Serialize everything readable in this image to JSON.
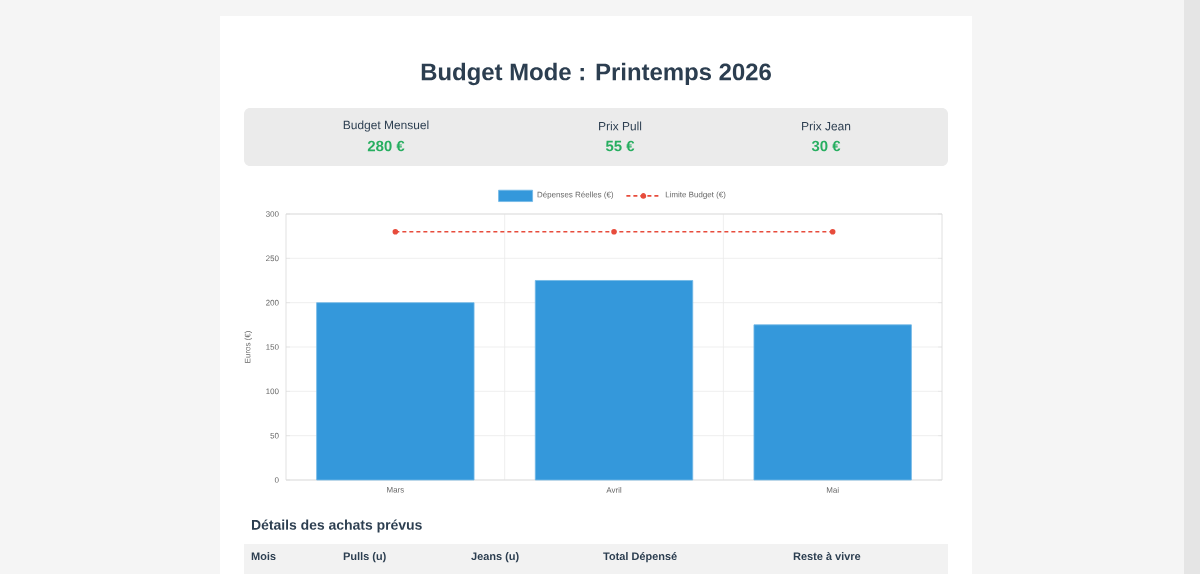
{
  "chart_data": {
    "type": "bar",
    "title": "Budget Mode : Printemps 2026",
    "categories": [
      "Mars",
      "Avril",
      "Mai"
    ],
    "series": [
      {
        "name": "Dépenses Réelles (€)",
        "color": "#3498db",
        "values": [
          200,
          225,
          175
        ]
      },
      {
        "name": "Limite Budget (€)",
        "type": "line",
        "color": "#e74c3c",
        "line_style": "dashed",
        "marker": "circle",
        "values": [
          280,
          280,
          280
        ]
      }
    ],
    "ylabel": "Euros (€)",
    "ylim": [
      0,
      300
    ],
    "yticks": [
      0,
      50,
      100,
      150,
      200,
      250,
      300
    ],
    "grid": true,
    "legend": "top",
    "annotations": [
      "Budget Mensuel",
      "280 €",
      "Prix Pull",
      "55 €",
      "Prix Jean",
      "30 €",
      "Détails des achats prévus",
      "Mois",
      "Pulls (u)",
      "Jeans (u)",
      "Total Dépensé",
      "Reste à vivre"
    ]
  }
}
